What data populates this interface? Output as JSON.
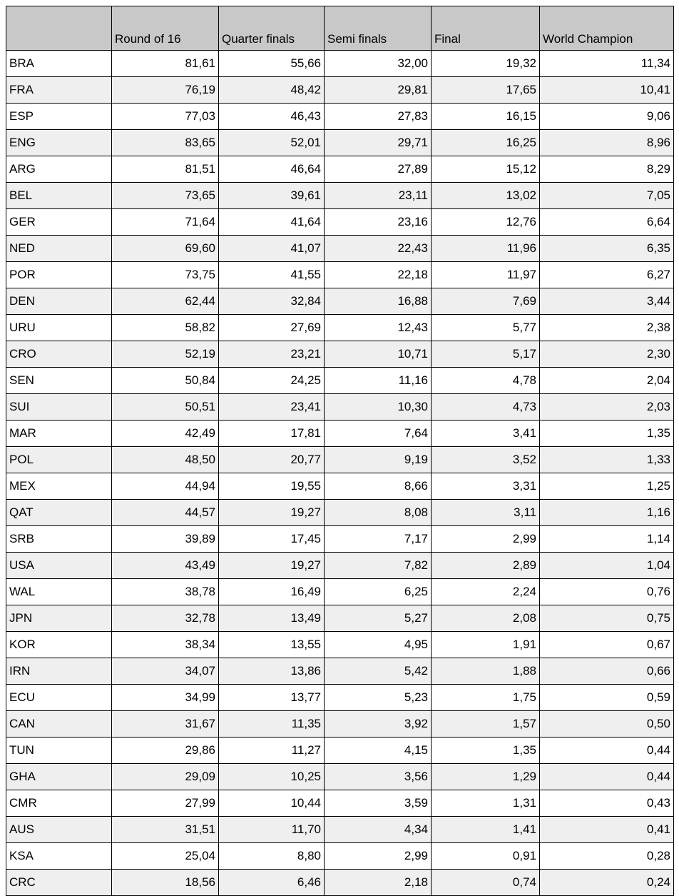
{
  "table": {
    "headers": [
      "",
      "Round of 16",
      "Quarter finals",
      "Semi finals",
      "Final",
      "World Champion"
    ],
    "rows": [
      [
        "BRA",
        "81,61",
        "55,66",
        "32,00",
        "19,32",
        "11,34"
      ],
      [
        "FRA",
        "76,19",
        "48,42",
        "29,81",
        "17,65",
        "10,41"
      ],
      [
        "ESP",
        "77,03",
        "46,43",
        "27,83",
        "16,15",
        "9,06"
      ],
      [
        "ENG",
        "83,65",
        "52,01",
        "29,71",
        "16,25",
        "8,96"
      ],
      [
        "ARG",
        "81,51",
        "46,64",
        "27,89",
        "15,12",
        "8,29"
      ],
      [
        "BEL",
        "73,65",
        "39,61",
        "23,11",
        "13,02",
        "7,05"
      ],
      [
        "GER",
        "71,64",
        "41,64",
        "23,16",
        "12,76",
        "6,64"
      ],
      [
        "NED",
        "69,60",
        "41,07",
        "22,43",
        "11,96",
        "6,35"
      ],
      [
        "POR",
        "73,75",
        "41,55",
        "22,18",
        "11,97",
        "6,27"
      ],
      [
        "DEN",
        "62,44",
        "32,84",
        "16,88",
        "7,69",
        "3,44"
      ],
      [
        "URU",
        "58,82",
        "27,69",
        "12,43",
        "5,77",
        "2,38"
      ],
      [
        "CRO",
        "52,19",
        "23,21",
        "10,71",
        "5,17",
        "2,30"
      ],
      [
        "SEN",
        "50,84",
        "24,25",
        "11,16",
        "4,78",
        "2,04"
      ],
      [
        "SUI",
        "50,51",
        "23,41",
        "10,30",
        "4,73",
        "2,03"
      ],
      [
        "MAR",
        "42,49",
        "17,81",
        "7,64",
        "3,41",
        "1,35"
      ],
      [
        "POL",
        "48,50",
        "20,77",
        "9,19",
        "3,52",
        "1,33"
      ],
      [
        "MEX",
        "44,94",
        "19,55",
        "8,66",
        "3,31",
        "1,25"
      ],
      [
        "QAT",
        "44,57",
        "19,27",
        "8,08",
        "3,11",
        "1,16"
      ],
      [
        "SRB",
        "39,89",
        "17,45",
        "7,17",
        "2,99",
        "1,14"
      ],
      [
        "USA",
        "43,49",
        "19,27",
        "7,82",
        "2,89",
        "1,04"
      ],
      [
        "WAL",
        "38,78",
        "16,49",
        "6,25",
        "2,24",
        "0,76"
      ],
      [
        "JPN",
        "32,78",
        "13,49",
        "5,27",
        "2,08",
        "0,75"
      ],
      [
        "KOR",
        "38,34",
        "13,55",
        "4,95",
        "1,91",
        "0,67"
      ],
      [
        "IRN",
        "34,07",
        "13,86",
        "5,42",
        "1,88",
        "0,66"
      ],
      [
        "ECU",
        "34,99",
        "13,77",
        "5,23",
        "1,75",
        "0,59"
      ],
      [
        "CAN",
        "31,67",
        "11,35",
        "3,92",
        "1,57",
        "0,50"
      ],
      [
        "TUN",
        "29,86",
        "11,27",
        "4,15",
        "1,35",
        "0,44"
      ],
      [
        "GHA",
        "29,09",
        "10,25",
        "3,56",
        "1,29",
        "0,44"
      ],
      [
        "CMR",
        "27,99",
        "10,44",
        "3,59",
        "1,31",
        "0,43"
      ],
      [
        "AUS",
        "31,51",
        "11,70",
        "4,34",
        "1,41",
        "0,41"
      ],
      [
        "KSA",
        "25,04",
        "8,80",
        "2,99",
        "0,91",
        "0,28"
      ],
      [
        "CRC",
        "18,56",
        "6,46",
        "2,18",
        "0,74",
        "0,24"
      ]
    ]
  }
}
